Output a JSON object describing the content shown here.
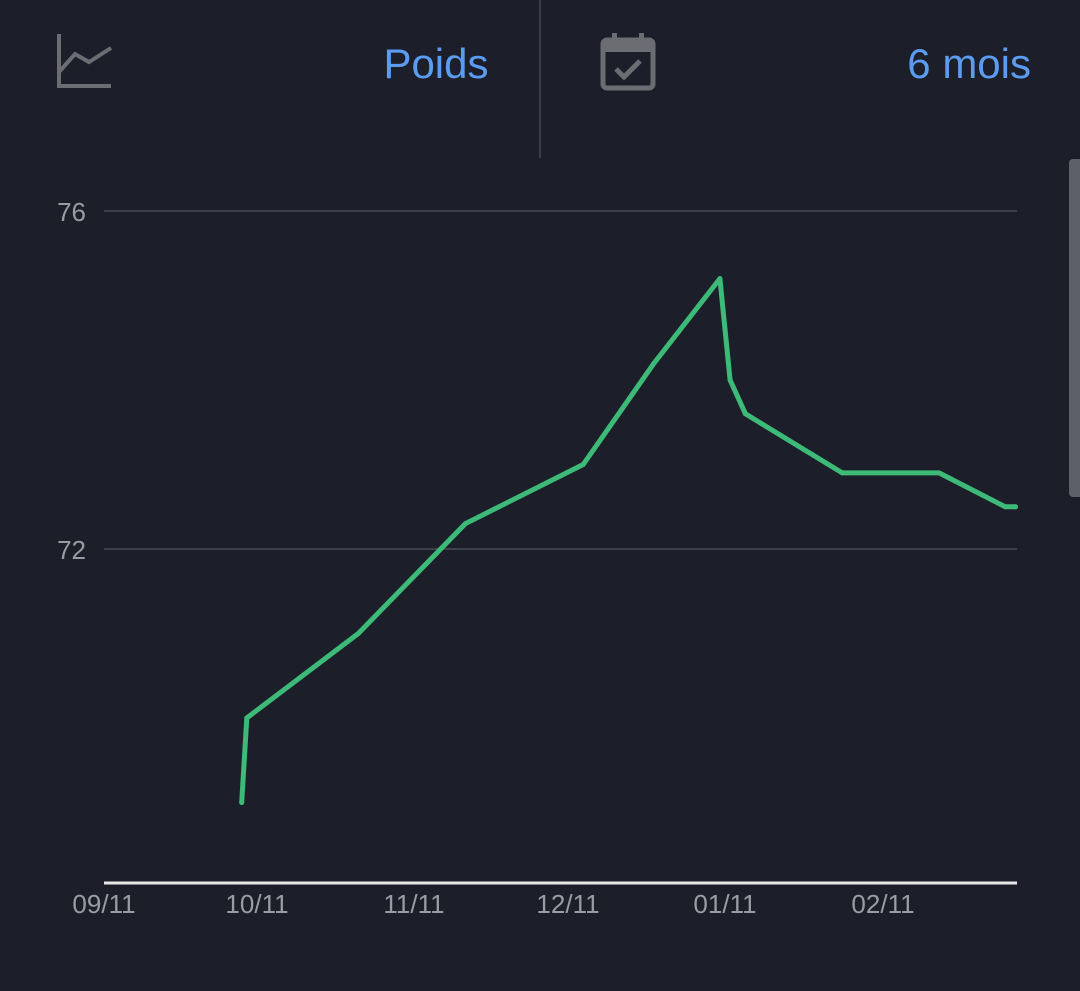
{
  "toolbar": {
    "metric_icon": "line-chart-icon",
    "metric_label": "Poids",
    "period_icon": "calendar-check-icon",
    "period_label": "6 mois"
  },
  "colors": {
    "background": "#1c1f29",
    "accent": "#5b9bf0",
    "series": "#3dba78",
    "grid": "#3e414b",
    "axis": "#e8e8e8",
    "tick_text": "#9a9ca3",
    "icon": "#6b6d73"
  },
  "chart_data": {
    "type": "line",
    "title": "",
    "xlabel": "",
    "ylabel": "",
    "x_ticks": [
      "09/11",
      "10/11",
      "11/11",
      "12/11",
      "01/11",
      "02/11"
    ],
    "y_ticks": [
      72,
      76
    ],
    "ylim": [
      68,
      76.6
    ],
    "grid": "horizontal",
    "legend": "none",
    "series": [
      {
        "values": [
          {
            "x": "2022-10-08",
            "y": 69.0
          },
          {
            "x": "2022-10-09",
            "y": 70.0
          },
          {
            "x": "2022-10-31",
            "y": 71.0
          },
          {
            "x": "2022-11-21",
            "y": 72.3
          },
          {
            "x": "2022-12-14",
            "y": 73.0
          },
          {
            "x": "2022-12-28",
            "y": 74.2
          },
          {
            "x": "2023-01-10",
            "y": 75.2
          },
          {
            "x": "2023-01-12",
            "y": 74.0
          },
          {
            "x": "2023-01-15",
            "y": 73.6
          },
          {
            "x": "2023-02-03",
            "y": 72.9
          },
          {
            "x": "2023-02-22",
            "y": 72.9
          },
          {
            "x": "2023-03-07",
            "y": 72.5
          },
          {
            "x": "2023-03-09",
            "y": 72.5
          }
        ]
      }
    ]
  }
}
